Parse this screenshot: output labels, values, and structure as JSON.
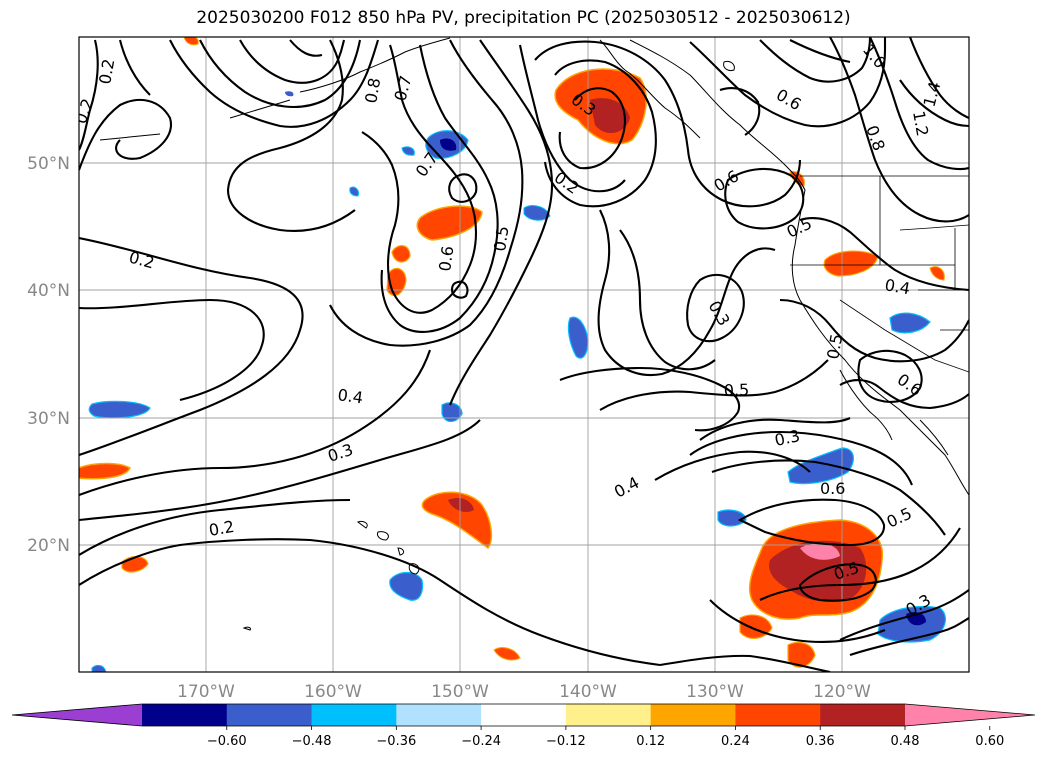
{
  "title": "2025030200 F012 850 hPa PV, precipitation PC (2025030512 - 2025030612)",
  "map": {
    "lon_labels": [
      "170°W",
      "160°W",
      "150°W",
      "140°W",
      "130°W",
      "120°W"
    ],
    "lat_labels": [
      "50°N",
      "40°N",
      "30°N",
      "20°N"
    ]
  },
  "contour_labels": [
    "0.2",
    "0.2",
    "0.2",
    "0.2",
    "0.3",
    "0.3",
    "0.3",
    "0.4",
    "0.4",
    "0.4",
    "0.5",
    "0.5",
    "0.5",
    "0.5",
    "0.5",
    "0.6",
    "0.6",
    "0.6",
    "0.6",
    "0.7",
    "0.7",
    "0.8",
    "0.8",
    "1.0",
    "1.2",
    "1.4",
    "0.3",
    "0.2",
    "0.5",
    "0.3",
    "0.6"
  ],
  "colorbar": {
    "ticks": [
      "−0.60",
      "−0.48",
      "−0.36",
      "−0.24",
      "−0.12",
      "0.12",
      "0.24",
      "0.36",
      "0.48",
      "0.60"
    ],
    "colors": [
      "#9b3fd3",
      "#00008b",
      "#3a5fcd",
      "#00bfff",
      "#b0e2ff",
      "#ffffff",
      "#fff08c",
      "#ffa500",
      "#ff4500",
      "#b22222",
      "#ff82ab"
    ]
  }
}
